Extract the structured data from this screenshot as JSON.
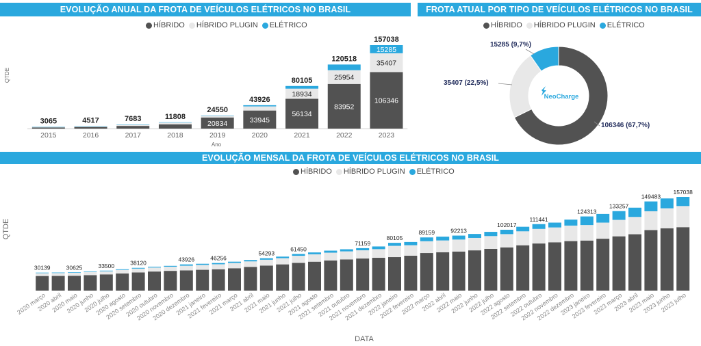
{
  "colors": {
    "hibrido": "#525252",
    "plugin": "#e8e8e8",
    "eletrico": "#2aa8de",
    "axis_text": "#666666",
    "label": "#222222"
  },
  "legend": [
    {
      "label": "HÍBRIDO",
      "color": "#525252"
    },
    {
      "label": "HÍBRIDO PLUGIN",
      "color": "#e8e8e8"
    },
    {
      "label": "ELÉTRICO",
      "color": "#2aa8de"
    }
  ],
  "chart_data": [
    {
      "type": "bar",
      "title": "EVOLUÇÃO ANUAL DA FROTA DE VEÍCULOS ELÉTRICOS NO BRASIL",
      "xlabel": "Ano",
      "ylabel": "QTDE",
      "categories": [
        "2015",
        "2016",
        "2017",
        "2018",
        "2019",
        "2020",
        "2021",
        "2022",
        "2023"
      ],
      "totals": [
        3065,
        4517,
        7683,
        11808,
        24550,
        43926,
        80105,
        120518,
        157038
      ],
      "series": [
        {
          "name": "HÍBRIDO",
          "values": [
            2000,
            3000,
            5000,
            8000,
            20834,
            33945,
            56134,
            83952,
            106346
          ]
        },
        {
          "name": "HÍBRIDO PLUGIN",
          "values": [
            900,
            1300,
            2300,
            3200,
            3000,
            7800,
            18934,
            25954,
            35407
          ]
        },
        {
          "name": "ELÉTRICO",
          "values": [
            165,
            217,
            383,
            608,
            716,
            2181,
            5037,
            10612,
            15285
          ]
        }
      ],
      "segment_labels": {
        "HÍBRIDO": [
          "",
          "",
          "",
          "",
          "20834",
          "33945",
          "56134",
          "83952",
          "106346"
        ],
        "HÍBRIDO PLUGIN": [
          "",
          "",
          "",
          "",
          "",
          "",
          "18934",
          "25954",
          "35407"
        ],
        "ELÉTRICO": [
          "",
          "",
          "",
          "",
          "",
          "",
          "",
          "",
          "15285"
        ]
      },
      "ylim": [
        0,
        160000
      ],
      "stacked": true,
      "legend_position": "top-center"
    },
    {
      "type": "pie",
      "title": "FROTA ATUAL POR TIPO DE VEÍCULOS ELÉTRICOS NO BRASIL",
      "donut": true,
      "center_logo": "NeoCharge",
      "slices": [
        {
          "name": "HÍBRIDO",
          "value": 106346,
          "label": "106346 (67,7%)"
        },
        {
          "name": "HÍBRIDO PLUGIN",
          "value": 35407,
          "label": "35407 (22,5%)"
        },
        {
          "name": "ELÉTRICO",
          "value": 15285,
          "label": "15285 (9,7%)"
        }
      ],
      "legend_position": "top-center"
    },
    {
      "type": "bar",
      "title": "EVOLUÇÃO MENSAL DA FROTA DE VEÍCULOS ELÉTRICOS NO BRASIL",
      "xlabel": "DATA",
      "ylabel": "QTDE",
      "stacked": true,
      "ylim": [
        0,
        165000
      ],
      "legend_position": "top-center",
      "categories": [
        "2020 março",
        "2020 abril",
        "2020 maio",
        "2020 junho",
        "2020 julho",
        "2020 agosto",
        "2020 setembro",
        "2020 outubro",
        "2020 novembro",
        "2020 dezembro",
        "2021 janeiro",
        "2021 fevereiro",
        "2021 março",
        "2021 abril",
        "2021 maio",
        "2021 junho",
        "2021 julho",
        "2021 agosto",
        "2021 setembro",
        "2021 outubro",
        "2021 novembro",
        "2021 dezembro",
        "2022 janeiro",
        "2022 fevereiro",
        "2022 março",
        "2022 abril",
        "2022 maio",
        "2022 junho",
        "2022 julho",
        "2022 agosto",
        "2022 setembro",
        "2022 outubro",
        "2022 novembro",
        "2022 dezembro",
        "2023 janeiro",
        "2023 fevereiro",
        "2023 março",
        "2023 abril",
        "2023 maio",
        "2023 junho",
        "2023 julho"
      ],
      "totals": [
        30139,
        30300,
        30625,
        32000,
        33500,
        35800,
        38120,
        40000,
        41500,
        43926,
        45000,
        46256,
        48500,
        51300,
        54293,
        57000,
        61450,
        64000,
        67000,
        69300,
        71159,
        74000,
        80105,
        81500,
        89159,
        90500,
        92213,
        95000,
        98500,
        102017,
        107000,
        111441,
        114000,
        119000,
        124313,
        128500,
        133257,
        139000,
        149483,
        154500,
        157038
      ],
      "top_labels": [
        "30139",
        "",
        "30625",
        "",
        "33500",
        "",
        "38120",
        "",
        "",
        "43926",
        "",
        "46256",
        "",
        "",
        "54293",
        "",
        "61450",
        "",
        "",
        "",
        "71159",
        "",
        "80105",
        "",
        "89159",
        "",
        "92213",
        "",
        "",
        "102017",
        "",
        "111441",
        "",
        "",
        "124313",
        "",
        "133257",
        "",
        "149483",
        "",
        "157038"
      ],
      "series": [
        {
          "name": "HÍBRIDO",
          "values": [
            24500,
            24600,
            24900,
            26000,
            27200,
            28800,
            30500,
            32000,
            33100,
            33945,
            34900,
            35800,
            37500,
            39800,
            42000,
            44000,
            46500,
            48500,
            50500,
            52300,
            53800,
            55000,
            56134,
            58500,
            63000,
            64200,
            65500,
            67500,
            70000,
            72500,
            76000,
            79000,
            81000,
            83000,
            83952,
            87000,
            91000,
            94500,
            101500,
            104500,
            106346
          ]
        },
        {
          "name": "HÍBRIDO PLUGIN",
          "values": [
            4800,
            4850,
            4900,
            5100,
            5300,
            5900,
            6400,
            6700,
            7000,
            7800,
            8200,
            8400,
            8900,
            9200,
            9800,
            10400,
            11900,
            12400,
            13100,
            13500,
            13800,
            14500,
            18934,
            17600,
            19800,
            19900,
            20100,
            20800,
            21400,
            22200,
            23400,
            24400,
            24900,
            26000,
            25954,
            27000,
            27600,
            29000,
            31500,
            33500,
            35407
          ]
        },
        {
          "name": "ELÉTRICO",
          "values": [
            839,
            850,
            825,
            900,
            1000,
            1100,
            1220,
            1300,
            1400,
            2181,
            1900,
            2056,
            2100,
            2300,
            2493,
            2600,
            3050,
            3100,
            3400,
            3500,
            3559,
            4500,
            5037,
            5400,
            6359,
            6400,
            6613,
            6700,
            7100,
            7317,
            7600,
            8041,
            8100,
            10000,
            14407,
            14500,
            14657,
            15500,
            16483,
            16500,
            15285
          ]
        }
      ]
    }
  ]
}
